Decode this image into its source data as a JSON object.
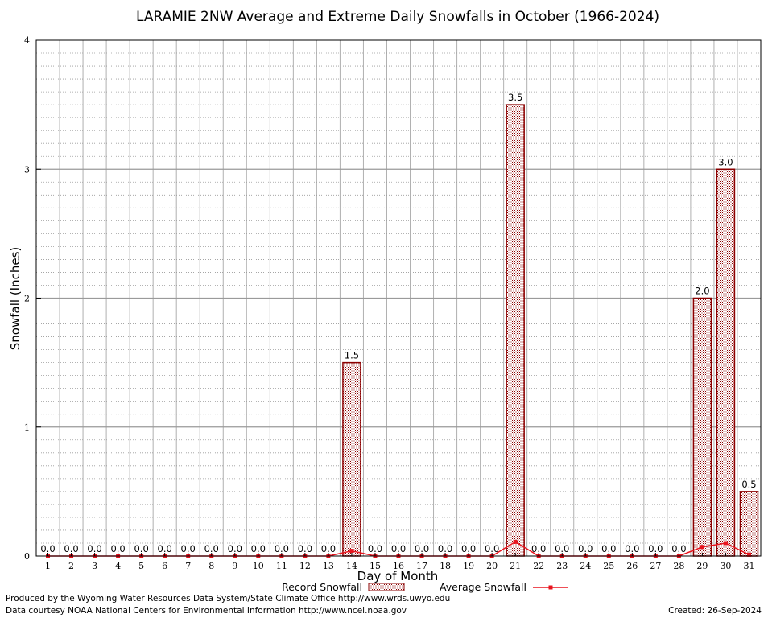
{
  "chart_data": {
    "type": "bar",
    "title": "LARAMIE 2NW Average and Extreme Daily Snowfalls in October (1966-2024)",
    "xlabel": "Day of Month",
    "ylabel": "Snowfall (Inches)",
    "ylim": [
      0,
      4
    ],
    "yticks": [
      "0",
      "1",
      "2",
      "3",
      "4"
    ],
    "grid": true,
    "legend_position": "bottom-center",
    "categories": [
      "1",
      "2",
      "3",
      "4",
      "5",
      "6",
      "7",
      "8",
      "9",
      "10",
      "11",
      "12",
      "13",
      "14",
      "15",
      "16",
      "17",
      "18",
      "19",
      "20",
      "21",
      "22",
      "23",
      "24",
      "25",
      "26",
      "27",
      "28",
      "29",
      "30",
      "31"
    ],
    "series": [
      {
        "name": "Record Snowfall",
        "type": "bar",
        "color": "#8b0000",
        "values": [
          0,
          0,
          0,
          0,
          0,
          0,
          0,
          0,
          0,
          0,
          0,
          0,
          0,
          1.5,
          0,
          0,
          0,
          0,
          0,
          0,
          3.5,
          0,
          0,
          0,
          0,
          0,
          0,
          0,
          2.0,
          3.0,
          0.5
        ],
        "labels": [
          "0.0",
          "0.0",
          "0.0",
          "0.0",
          "0.0",
          "0.0",
          "0.0",
          "0.0",
          "0.0",
          "0.0",
          "0.0",
          "0.0",
          "0.0",
          "1.5",
          "0.0",
          "0.0",
          "0.0",
          "0.0",
          "0.0",
          "0.0",
          "3.5",
          "0.0",
          "0.0",
          "0.0",
          "0.0",
          "0.0",
          "0.0",
          "0.0",
          "2.0",
          "3.0",
          "0.5"
        ]
      },
      {
        "name": "Average Snowfall",
        "type": "line",
        "color": "#e8141e",
        "values": [
          0,
          0,
          0,
          0,
          0,
          0,
          0,
          0,
          0,
          0,
          0,
          0,
          0,
          0.04,
          0,
          0,
          0,
          0,
          0,
          0,
          0.11,
          0,
          0,
          0,
          0,
          0,
          0,
          0,
          0.07,
          0.1,
          0.01
        ]
      }
    ]
  },
  "footer": {
    "line1": "Produced by the Wyoming Water Resources Data System/State Climate Office http://www.wrds.uwyo.edu",
    "line2": "Data courtesy NOAA National Centers for Environmental Information http://www.ncei.noaa.gov",
    "created": "Created:  26-Sep-2024"
  }
}
